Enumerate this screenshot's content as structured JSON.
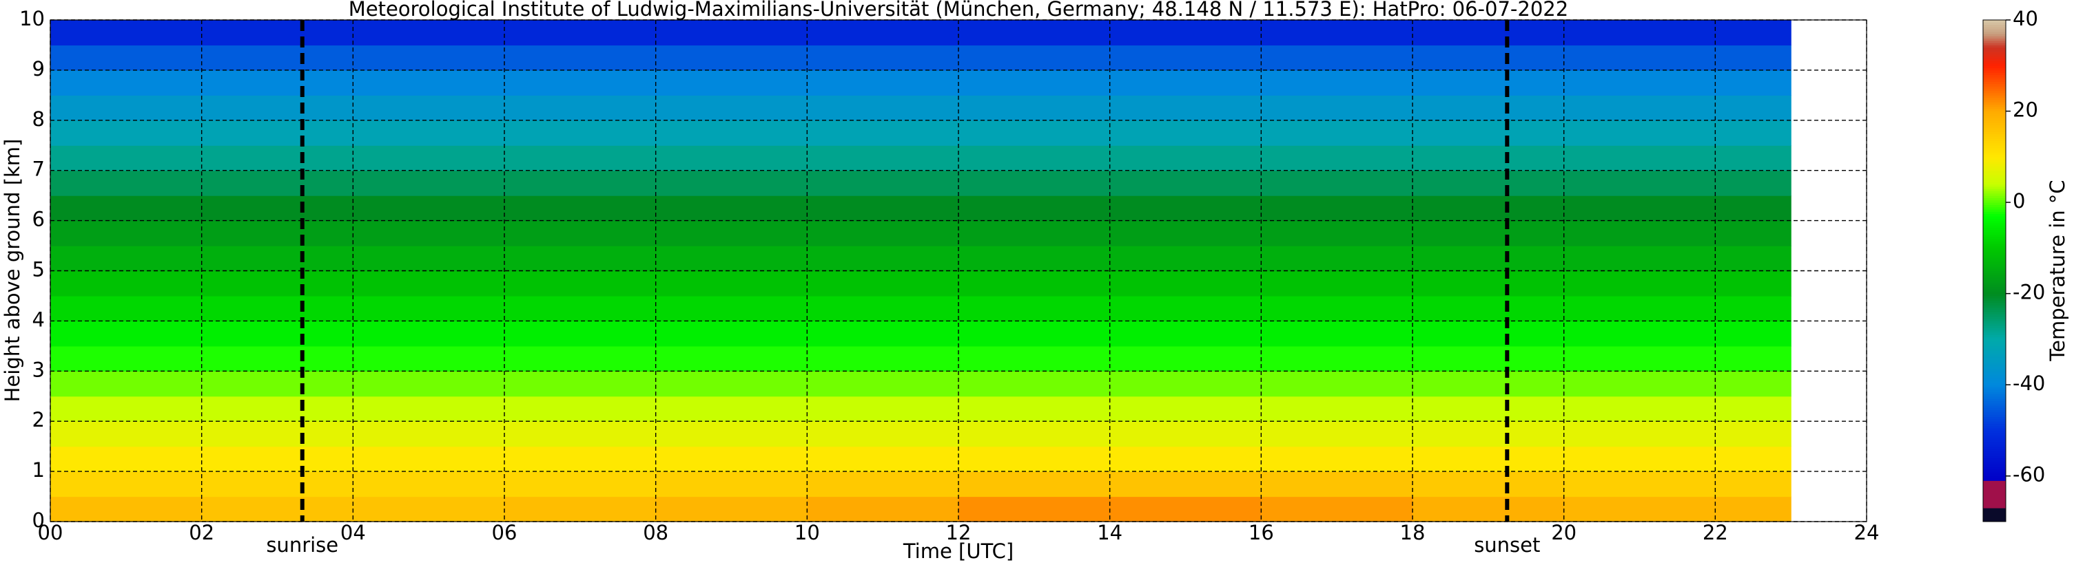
{
  "chart_data": {
    "type": "heatmap",
    "title": "Meteorological Institute of Ludwig-Maximilians-Universität (München, Germany; 48.148 N / 11.573 E):    HatPro: 06-07-2022",
    "x_label": "Time [UTC]",
    "y_label": "Height above ground [km]",
    "colorbar_label": "Temperature in °C",
    "x_edges": [
      0,
      2,
      4,
      6,
      8,
      10,
      12,
      14,
      16,
      18,
      20,
      22,
      23
    ],
    "y_edges": [
      0,
      0.5,
      1,
      1.5,
      2,
      2.5,
      3,
      3.5,
      4,
      4.5,
      5,
      5.5,
      6,
      6.5,
      7,
      7.5,
      8,
      8.5,
      9,
      9.5,
      10
    ],
    "values": [
      [
        17,
        16,
        16,
        17,
        18,
        20,
        22,
        22,
        21,
        19,
        18,
        18
      ],
      [
        13,
        13,
        13,
        13,
        14,
        15,
        16,
        16,
        16,
        15,
        14,
        14
      ],
      [
        10,
        10,
        10,
        10,
        10,
        10,
        10,
        10,
        10,
        10,
        10,
        10
      ],
      [
        7,
        7,
        7,
        7,
        7,
        7,
        7,
        7,
        7,
        7,
        7,
        7
      ],
      [
        4,
        4,
        4,
        4,
        4,
        4,
        4,
        4,
        4,
        4,
        4,
        4
      ],
      [
        1,
        1,
        1,
        1,
        1,
        1,
        1,
        1,
        1,
        1,
        1,
        1
      ],
      [
        -2,
        -2,
        -2,
        -2,
        -2,
        -2,
        -2,
        -2,
        -2,
        -2,
        -2,
        -2
      ],
      [
        -5,
        -5,
        -5,
        -5,
        -5,
        -5,
        -5,
        -5,
        -5,
        -5,
        -5,
        -5
      ],
      [
        -8,
        -8,
        -8,
        -8,
        -8,
        -8,
        -8,
        -8,
        -8,
        -8,
        -8,
        -8
      ],
      [
        -11,
        -11,
        -11,
        -11,
        -11,
        -11,
        -11,
        -11,
        -11,
        -11,
        -11,
        -11
      ],
      [
        -14,
        -14,
        -14,
        -14,
        -14,
        -14,
        -14,
        -14,
        -14,
        -14,
        -14,
        -14
      ],
      [
        -17,
        -17,
        -17,
        -17,
        -17,
        -17,
        -17,
        -17,
        -17,
        -17,
        -17,
        -17
      ],
      [
        -20,
        -20,
        -20,
        -20,
        -20,
        -20,
        -20,
        -20,
        -20,
        -20,
        -20,
        -20
      ],
      [
        -24,
        -24,
        -24,
        -24,
        -24,
        -24,
        -24,
        -24,
        -24,
        -24,
        -24,
        -24
      ],
      [
        -28,
        -28,
        -28,
        -28,
        -28,
        -28,
        -28,
        -28,
        -28,
        -28,
        -28,
        -28
      ],
      [
        -32,
        -32,
        -32,
        -32,
        -32,
        -32,
        -32,
        -32,
        -32,
        -32,
        -32,
        -32
      ],
      [
        -36,
        -36,
        -36,
        -36,
        -36,
        -36,
        -36,
        -36,
        -36,
        -36,
        -36,
        -36
      ],
      [
        -40,
        -40,
        -40,
        -40,
        -40,
        -40,
        -40,
        -40,
        -40,
        -40,
        -40,
        -40
      ],
      [
        -45,
        -45,
        -45,
        -45,
        -45,
        -45,
        -45,
        -45,
        -45,
        -45,
        -45,
        -45
      ],
      [
        -52,
        -52,
        -52,
        -52,
        -52,
        -52,
        -52,
        -52,
        -52,
        -52,
        -52,
        -52
      ]
    ],
    "xlim": [
      0,
      24
    ],
    "ylim": [
      0,
      10
    ],
    "xticks": [
      {
        "value": 0,
        "label": "00"
      },
      {
        "value": 2,
        "label": "02"
      },
      {
        "value": 4,
        "label": "04"
      },
      {
        "value": 6,
        "label": "06"
      },
      {
        "value": 8,
        "label": "08"
      },
      10,
      12,
      14,
      16,
      18,
      20,
      22,
      24
    ],
    "yticks": [
      0,
      1,
      2,
      3,
      4,
      5,
      6,
      7,
      8,
      9,
      10
    ],
    "clim": [
      -70,
      40
    ],
    "cticks": [
      -60,
      -40,
      -20,
      0,
      20,
      40
    ],
    "colormap": [
      [
        -70,
        "#0a0a2a"
      ],
      [
        -67,
        "#0a0a2a"
      ],
      [
        -66.9,
        "#a0104a"
      ],
      [
        -61,
        "#a0104a"
      ],
      [
        -60.9,
        "#0000c8"
      ],
      [
        -50,
        "#0030dd"
      ],
      [
        -40,
        "#0088dd"
      ],
      [
        -30,
        "#00aaaa"
      ],
      [
        -20,
        "#008c20"
      ],
      [
        -10,
        "#00c800"
      ],
      [
        -3,
        "#00ff00"
      ],
      [
        4,
        "#c8ff00"
      ],
      [
        10,
        "#ffe800"
      ],
      [
        20,
        "#ffaa00"
      ],
      [
        30,
        "#ff2200"
      ],
      [
        34,
        "#cc3322"
      ],
      [
        37,
        "#c8a080"
      ],
      [
        40,
        "#d8c8a8"
      ]
    ],
    "grid": true,
    "annotations": [
      {
        "x": 3.33,
        "label": "sunrise"
      },
      {
        "x": 19.25,
        "label": "sunset"
      }
    ]
  }
}
